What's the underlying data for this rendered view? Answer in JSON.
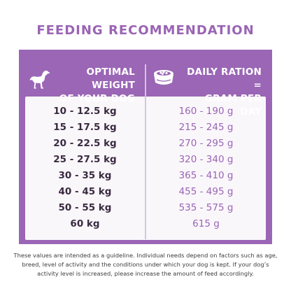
{
  "title": "FEEDING RECOMMENDATION",
  "header": {
    "left_line1": "OPTIMAL WEIGHT",
    "left_line2": "OF YOUR DOG",
    "right_line1": "DAILY RATION =",
    "right_line2": "GRAM PER DAY",
    "left_icon": "dog-icon",
    "right_icon": "food-bowl-icon"
  },
  "rows": [
    {
      "weight": "10 - 12.5 kg",
      "ration": "160 - 190 g"
    },
    {
      "weight": "15 - 17.5 kg",
      "ration": "215 - 245 g"
    },
    {
      "weight": "20 - 22.5 kg",
      "ration": "270 - 295 g"
    },
    {
      "weight": "25 - 27.5 kg",
      "ration": "320 - 340 g"
    },
    {
      "weight": "30 - 35 kg",
      "ration": "365 - 410 g"
    },
    {
      "weight": "40 - 45 kg",
      "ration": "455 - 495 g"
    },
    {
      "weight": "50 - 55 kg",
      "ration": "535 - 575 g"
    },
    {
      "weight": "60 kg",
      "ration": "615 g"
    }
  ],
  "footnote": {
    "line1": "These values are intended as a guideline. Individual needs depend on factors such as age,",
    "line2": "breed, level of activity and the conditions under which your dog is kept. If your dog’s",
    "line3": "activity level is increased, please increase the amount of feed accordingly."
  },
  "colors": {
    "accent": "#9a66b5",
    "weight_text": "#3a2a40",
    "ration_text": "#9a64b4"
  }
}
